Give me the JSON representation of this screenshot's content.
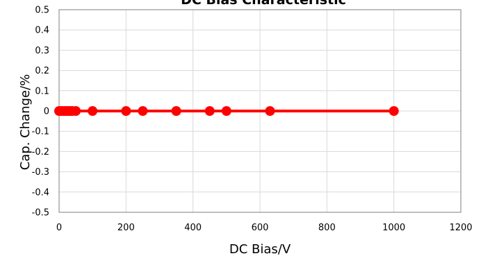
{
  "chart_data": {
    "type": "line",
    "title": "DC Bias Characteristic",
    "xlabel": "DC Bias/V",
    "ylabel": "Cap. Change/%",
    "xlim": [
      0,
      1200
    ],
    "ylim": [
      -0.5,
      0.5
    ],
    "x_ticks": [
      "0",
      "200",
      "400",
      "600",
      "800",
      "1000",
      "1200"
    ],
    "y_ticks": [
      "0.5",
      "0.4",
      "0.3",
      "0.2",
      "0.1",
      "0",
      "-0.1",
      "-0.2",
      "-0.3",
      "-0.4",
      "-0.5"
    ],
    "grid": true,
    "series": [
      {
        "color": "#ff0000",
        "x": [
          0,
          5,
          10,
          15,
          20,
          25,
          30,
          35,
          40,
          50,
          100,
          200,
          250,
          350,
          450,
          500,
          630,
          1000
        ],
        "y": [
          0,
          0,
          0,
          0,
          0,
          0,
          0,
          0,
          0,
          0,
          0,
          0,
          0,
          0,
          0,
          0,
          0,
          0
        ]
      }
    ]
  }
}
